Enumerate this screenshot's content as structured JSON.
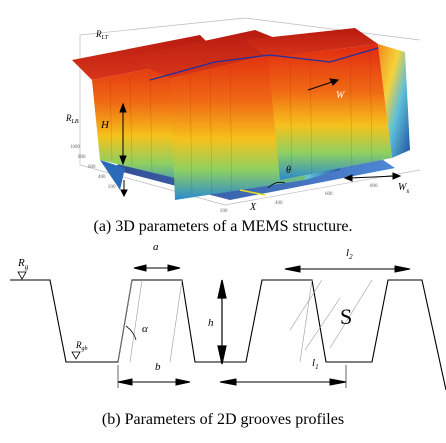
{
  "figure_a": {
    "caption": "(a) 3D parameters of a MEMS structure.",
    "labels": {
      "r_lt": "R",
      "r_lt_sub": "LT",
      "r_lb": "R",
      "r_lb_sub": "LB",
      "h_upper": "H",
      "w": "W",
      "w_s": "W",
      "w_s_sub": "s",
      "theta": "θ",
      "x": "X"
    },
    "axis_ticks": {
      "left": [
        "1000",
        "800",
        "600",
        "400",
        "200"
      ],
      "bottom": [
        "200",
        "400",
        "600",
        "800"
      ]
    }
  },
  "figure_b": {
    "caption": "(b) Parameters of 2D grooves profiles",
    "labels": {
      "r_g": "R",
      "r_g_sub": "g",
      "r_gb": "R",
      "r_gb_sub": "gb",
      "a": "a",
      "l2": "l",
      "l2_sub": "2",
      "h": "h",
      "s": "S",
      "alpha": "α",
      "b": "b",
      "l1": "l",
      "l1_sub": "1"
    }
  },
  "colors": {
    "surface_top": "#d42a1a",
    "surface_mid": "#f08a1a",
    "surface_cool": "#2a7fc4",
    "surface_deep": "#1a3a8a"
  }
}
